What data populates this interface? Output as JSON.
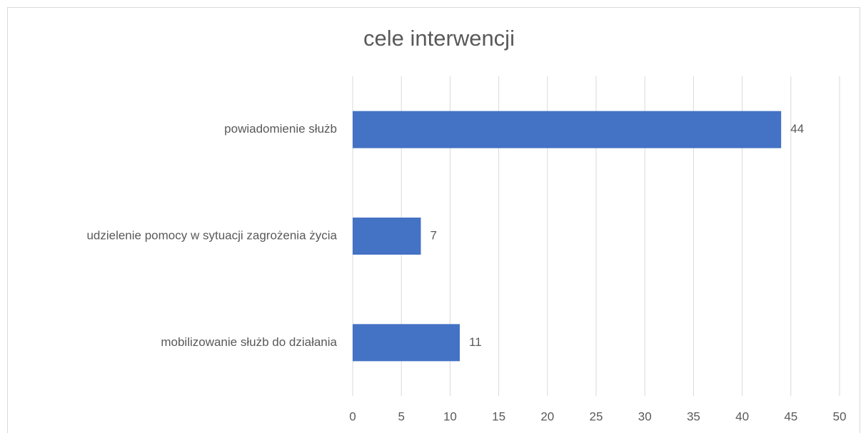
{
  "chart_data": {
    "type": "bar",
    "orientation": "horizontal",
    "title": "cele interwencji",
    "categories": [
      "powiadomienie służb",
      "udzielenie pomocy w sytuacji zagrożenia życia",
      "mobilizowanie służb do działania"
    ],
    "values": [
      44,
      7,
      11
    ],
    "color": "#4472c4",
    "xlim": [
      0,
      50
    ],
    "xticks": [
      0,
      5,
      10,
      15,
      20,
      25,
      30,
      35,
      40,
      45,
      50
    ],
    "grid": true,
    "data_labels": true
  }
}
